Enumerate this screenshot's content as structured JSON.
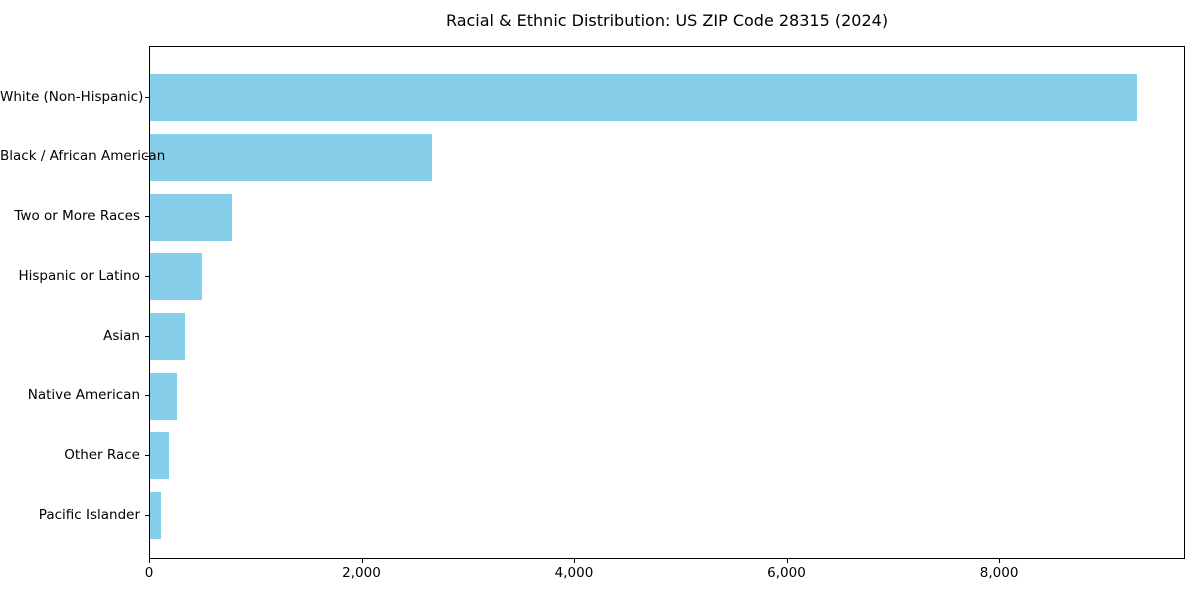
{
  "chart_data": {
    "type": "bar",
    "orientation": "horizontal",
    "title": "Racial & Ethnic Distribution: US ZIP Code 28315 (2024)",
    "categories": [
      "White (Non-Hispanic)",
      "Black / African American",
      "Two or More Races",
      "Hispanic or Latino",
      "Asian",
      "Native American",
      "Other Race",
      "Pacific Islander"
    ],
    "values": [
      9290,
      2650,
      770,
      485,
      330,
      255,
      175,
      105
    ],
    "xlabel": "",
    "ylabel": "",
    "xlim": [
      0,
      9750
    ],
    "xticks": [
      0,
      2000,
      4000,
      6000,
      8000
    ],
    "xtick_labels": [
      "0",
      "2,000",
      "4,000",
      "6,000",
      "8,000"
    ],
    "grid": false,
    "legend": null,
    "bar_color": "#87CEEB",
    "background_color": "#ffffff",
    "spine_color": "#000000",
    "text_color": "#000000"
  }
}
